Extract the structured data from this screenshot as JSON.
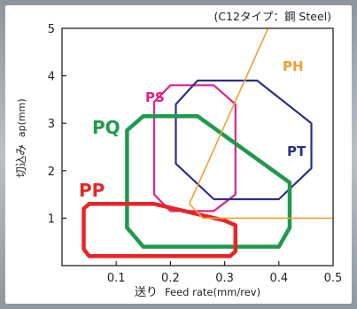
{
  "chart_data": {
    "type": "area",
    "subtitle": "(C12タイプ：鋼 Steel)",
    "xlabel_main": "送り",
    "xlabel_sub": "Feed rate(mm/rev)",
    "ylabel_main": "切込み",
    "ylabel_sub": "ap(mm)",
    "xlim": [
      0,
      0.5
    ],
    "ylim": [
      0,
      5
    ],
    "x_ticks": [
      "0.1",
      "0.2",
      "0.3",
      "0.4",
      "0.5"
    ],
    "y_ticks": [
      "1",
      "2",
      "3",
      "4",
      "5"
    ],
    "grid": false,
    "regions": [
      {
        "name": "PS",
        "color": "#e0208c",
        "points": [
          [
            0.17,
            3.45
          ],
          [
            0.2,
            3.8
          ],
          [
            0.28,
            3.8
          ],
          [
            0.32,
            3.4
          ],
          [
            0.32,
            1.5
          ],
          [
            0.28,
            1.15
          ],
          [
            0.2,
            1.15
          ],
          [
            0.17,
            1.5
          ]
        ]
      },
      {
        "name": "PT",
        "color": "#2b2f86",
        "points": [
          [
            0.21,
            3.4
          ],
          [
            0.25,
            3.9
          ],
          [
            0.36,
            3.9
          ],
          [
            0.46,
            3.0
          ],
          [
            0.46,
            2.05
          ],
          [
            0.4,
            1.4
          ],
          [
            0.28,
            1.4
          ],
          [
            0.21,
            2.15
          ]
        ]
      },
      {
        "name": "PQ",
        "color": "#1f9a4b",
        "points": [
          [
            0.12,
            2.85
          ],
          [
            0.15,
            3.15
          ],
          [
            0.25,
            3.15
          ],
          [
            0.42,
            1.75
          ],
          [
            0.42,
            0.8
          ],
          [
            0.4,
            0.4
          ],
          [
            0.15,
            0.4
          ],
          [
            0.12,
            0.8
          ]
        ]
      },
      {
        "name": "PP",
        "color": "#e62626",
        "points": [
          [
            0.04,
            1.2
          ],
          [
            0.05,
            1.3
          ],
          [
            0.17,
            1.3
          ],
          [
            0.3,
            0.95
          ],
          [
            0.32,
            0.85
          ],
          [
            0.32,
            0.3
          ],
          [
            0.31,
            0.2
          ],
          [
            0.05,
            0.2
          ],
          [
            0.04,
            0.35
          ]
        ]
      }
    ],
    "lines": [
      {
        "name": "PH",
        "color": "#f0a030",
        "points": [
          [
            0.235,
            1.3
          ],
          [
            0.38,
            5.0
          ]
        ]
      },
      {
        "name": "PH",
        "color": "#f0a030",
        "points": [
          [
            0.235,
            1.3
          ],
          [
            0.26,
            1.0
          ],
          [
            0.5,
            1.0
          ]
        ]
      }
    ]
  },
  "labels": {
    "ps": "PS",
    "pt": "PT",
    "pq": "PQ",
    "pp": "PP",
    "ph": "PH"
  }
}
